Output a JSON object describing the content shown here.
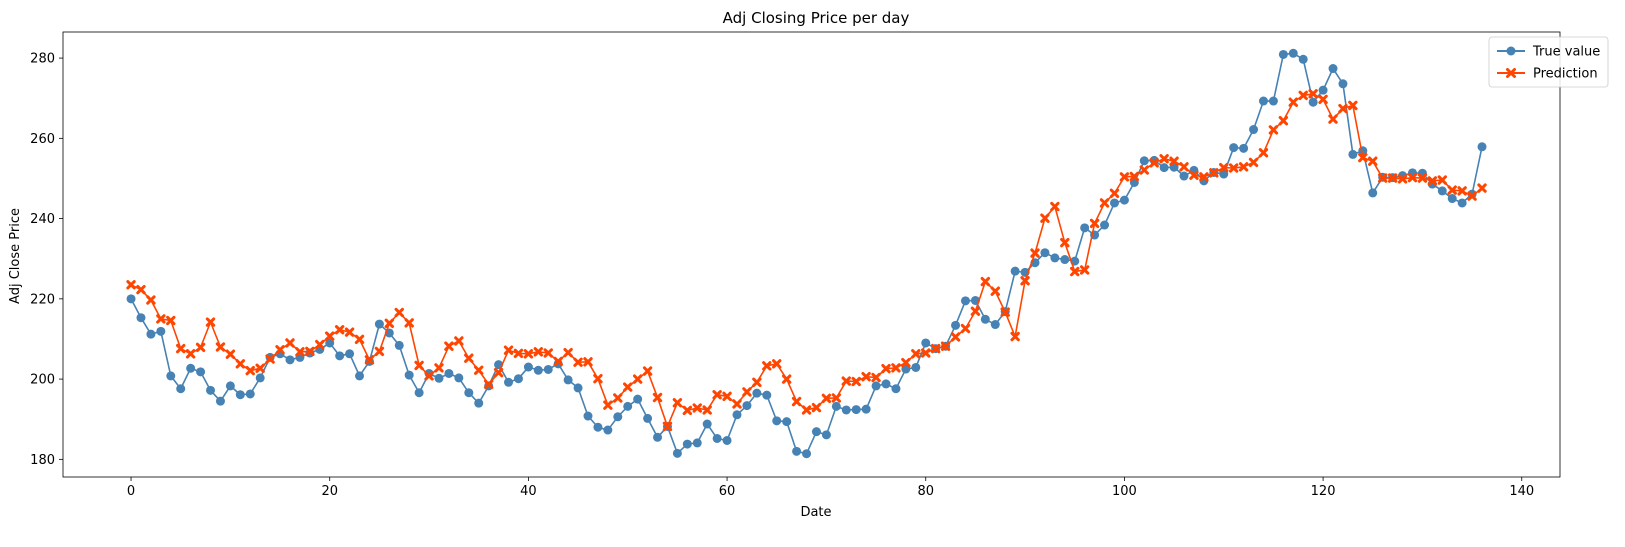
{
  "chart_data": {
    "type": "line",
    "title": "Adj Closing Price per day",
    "xlabel": "Date",
    "ylabel": "Adj Close Price",
    "xlim": [
      -6.85,
      143.85
    ],
    "ylim": [
      175.6,
      286.5
    ],
    "x_ticks": [
      0,
      20,
      40,
      60,
      80,
      100,
      120,
      140
    ],
    "y_ticks": [
      180,
      200,
      220,
      240,
      260,
      280
    ],
    "grid": false,
    "legend_position": "top-right",
    "series": [
      {
        "name": "True value",
        "color": "#4682b4",
        "marker": "circle",
        "values": [
          220.0,
          215.3,
          211.2,
          211.9,
          200.8,
          197.6,
          202.7,
          201.8,
          197.2,
          194.5,
          198.3,
          196.1,
          196.3,
          200.3,
          205.4,
          206.3,
          204.8,
          205.4,
          206.5,
          207.4,
          209.0,
          205.8,
          206.3,
          200.8,
          204.4,
          213.7,
          211.5,
          208.4,
          201.0,
          196.6,
          201.4,
          200.2,
          201.4,
          200.3,
          196.6,
          194.0,
          198.3,
          203.6,
          199.2,
          200.1,
          203.0,
          202.2,
          202.4,
          203.8,
          199.8,
          197.8,
          190.8,
          188.0,
          187.3,
          190.6,
          193.2,
          195.0,
          190.2,
          185.5,
          188.2,
          181.5,
          183.8,
          184.1,
          188.8,
          185.2,
          184.7,
          191.1,
          193.4,
          196.5,
          196.0,
          189.6,
          189.4,
          182.0,
          181.4,
          186.9,
          186.1,
          193.2,
          192.3,
          192.4,
          192.5,
          198.3,
          198.8,
          197.6,
          202.5,
          202.9,
          209.0,
          207.6,
          208.2,
          213.4,
          219.5,
          219.6,
          214.9,
          213.6,
          216.8,
          226.9,
          226.6,
          229.0,
          231.5,
          230.2,
          229.8,
          229.4,
          237.7,
          235.9,
          238.4,
          243.9,
          244.6,
          249.0,
          254.4,
          254.5,
          252.7,
          252.8,
          250.6,
          252.0,
          249.4,
          251.5,
          251.1,
          257.7,
          257.5,
          262.2,
          269.3,
          269.3,
          280.9,
          281.2,
          279.7,
          269.0,
          272.0,
          277.4,
          273.6,
          256.0,
          256.9,
          246.4,
          250.3,
          250.2,
          250.7,
          251.4,
          251.3,
          248.6,
          246.9,
          245.0,
          243.9,
          246.1,
          257.9
        ]
      },
      {
        "name": "Prediction",
        "color": "#ff4500",
        "marker": "x",
        "values": [
          223.5,
          222.3,
          219.7,
          215.0,
          214.6,
          207.6,
          206.3,
          207.9,
          214.2,
          208.0,
          206.2,
          203.8,
          202.1,
          202.7,
          205.0,
          207.3,
          209.0,
          206.8,
          206.9,
          208.6,
          210.7,
          212.3,
          211.7,
          209.9,
          204.8,
          206.9,
          213.9,
          216.6,
          214.0,
          203.4,
          200.8,
          202.8,
          208.2,
          209.5,
          205.2,
          202.2,
          198.7,
          201.6,
          207.2,
          206.4,
          206.3,
          206.8,
          206.5,
          204.4,
          206.6,
          204.2,
          204.3,
          200.1,
          193.5,
          195.3,
          198.0,
          200.0,
          202.0,
          195.4,
          188.2,
          194.1,
          192.2,
          192.8,
          192.3,
          196.1,
          195.7,
          193.8,
          196.8,
          199.2,
          203.3,
          203.8,
          200.0,
          194.4,
          192.3,
          192.9,
          195.2,
          195.3,
          199.5,
          199.4,
          200.6,
          200.4,
          202.6,
          202.8,
          204.1,
          206.3,
          206.5,
          207.6,
          208.2,
          210.5,
          212.6,
          216.9,
          224.3,
          221.9,
          216.7,
          210.6,
          224.5,
          231.4,
          240.1,
          243.0,
          234.0,
          226.8,
          227.2,
          238.8,
          243.9,
          246.3,
          250.4,
          250.5,
          252.1,
          253.9,
          254.9,
          254.3,
          252.9,
          250.8,
          250.4,
          251.4,
          252.7,
          252.6,
          252.9,
          254.0,
          256.4,
          262.1,
          264.4,
          269.0,
          270.7,
          271.1,
          269.7,
          264.8,
          267.4,
          268.2,
          255.2,
          254.3,
          250.1,
          250.1,
          249.9,
          250.2,
          250.1,
          249.4,
          249.6,
          247.1,
          246.9,
          245.6,
          247.6
        ]
      }
    ]
  }
}
